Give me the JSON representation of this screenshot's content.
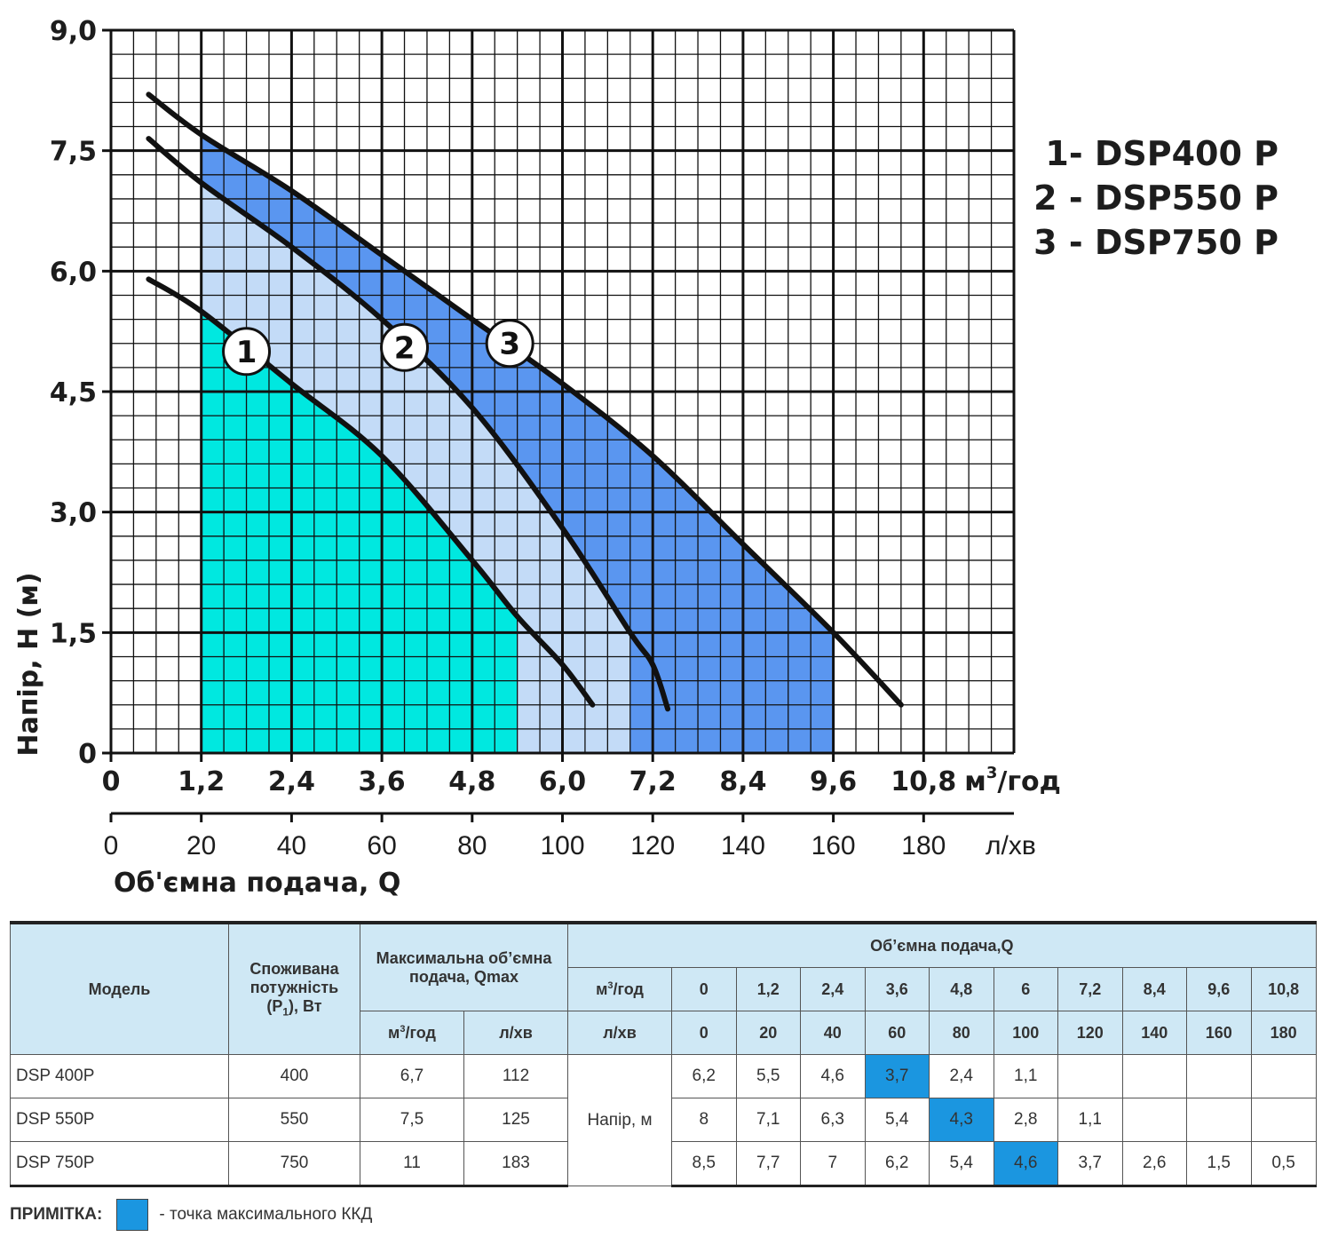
{
  "chart_data": {
    "type": "line",
    "ylabel": "Напір, H (м)",
    "xlabel": "Об'ємна подача, Q",
    "x_unit": "м³/год",
    "x2_unit": "л/хв",
    "xlim": [
      0,
      12.0
    ],
    "ylim": [
      0,
      9.0
    ],
    "x_ticks": [
      "0",
      "1,2",
      "2,4",
      "3,6",
      "4,8",
      "6,0",
      "7,2",
      "8,4",
      "9,6",
      "10,8"
    ],
    "x_tick_values": [
      0,
      1.2,
      2.4,
      3.6,
      4.8,
      6.0,
      7.2,
      8.4,
      9.6,
      10.8
    ],
    "x2_ticks": [
      "0",
      "20",
      "40",
      "60",
      "80",
      "100",
      "120",
      "140",
      "160",
      "180"
    ],
    "y_ticks": [
      "0",
      "1,5",
      "3,0",
      "4,5",
      "6,0",
      "7,5",
      "9,0"
    ],
    "y_tick_values": [
      0,
      1.5,
      3.0,
      4.5,
      6.0,
      7.5,
      9.0
    ],
    "grid": true,
    "legend_position": "right",
    "legend": [
      "1- DSP400 P",
      "2 - DSP550 P",
      "3 - DSP750 P"
    ],
    "series": [
      {
        "name": "DSP400 P",
        "label": "1",
        "color": "#00e8e0",
        "x": [
          0.5,
          1.2,
          2.4,
          3.6,
          4.8,
          5.4,
          6.0,
          6.4
        ],
        "y": [
          5.9,
          5.5,
          4.6,
          3.7,
          2.4,
          1.7,
          1.1,
          0.6
        ],
        "band": [
          1.2,
          5.4
        ],
        "label_at": [
          1.8,
          5.0
        ]
      },
      {
        "name": "DSP550 P",
        "label": "2",
        "color": "#c3dbf7",
        "x": [
          0.5,
          1.2,
          2.4,
          3.6,
          4.8,
          6.0,
          6.9,
          7.2,
          7.4
        ],
        "y": [
          7.65,
          7.1,
          6.3,
          5.4,
          4.3,
          2.8,
          1.5,
          1.1,
          0.55
        ],
        "band": [
          1.2,
          6.9
        ],
        "label_at": [
          3.9,
          5.05
        ]
      },
      {
        "name": "DSP750 P",
        "label": "3",
        "color": "#5a96f0",
        "x": [
          0.5,
          1.2,
          2.4,
          3.6,
          4.8,
          6.0,
          7.2,
          8.4,
          9.6,
          10.5
        ],
        "y": [
          8.2,
          7.7,
          7.0,
          6.2,
          5.4,
          4.6,
          3.7,
          2.6,
          1.5,
          0.6
        ],
        "band": [
          1.2,
          9.6
        ],
        "label_at": [
          5.3,
          5.1
        ]
      }
    ]
  },
  "table": {
    "header": {
      "model": "Модель",
      "power": [
        "Споживана",
        "потужність",
        "(P",
        "1",
        "), Вт"
      ],
      "qmax": "Максимальна об’ємна подача, Qmax",
      "qmax_m3": [
        "м",
        "3",
        "/год"
      ],
      "qmax_lmin": "л/хв",
      "flow": "Об’ємна подача,Q",
      "flow_m3_label": [
        "м",
        "3",
        "/год"
      ],
      "flow_lmin_label": "л/хв",
      "flow_m3": [
        "0",
        "1,2",
        "2,4",
        "3,6",
        "4,8",
        "6",
        "7,2",
        "8,4",
        "9,6",
        "10,8"
      ],
      "flow_lmin": [
        "0",
        "20",
        "40",
        "60",
        "80",
        "100",
        "120",
        "140",
        "160",
        "180"
      ]
    },
    "head_label": "Напір, м",
    "highlight_color": "#1b96e0",
    "rows": [
      {
        "model": "DSP 400P",
        "power": "400",
        "qmax_m3": "6,7",
        "qmax_lmin": "112",
        "heads": [
          "6,2",
          "5,5",
          "4,6",
          "3,7",
          "2,4",
          "1,1",
          "",
          "",
          "",
          ""
        ],
        "highlight": 3
      },
      {
        "model": "DSP 550P",
        "power": "550",
        "qmax_m3": "7,5",
        "qmax_lmin": "125",
        "heads": [
          "8",
          "7,1",
          "6,3",
          "5,4",
          "4,3",
          "2,8",
          "1,1",
          "",
          "",
          ""
        ],
        "highlight": 4
      },
      {
        "model": "DSP 750P",
        "power": "750",
        "qmax_m3": "11",
        "qmax_lmin": "183",
        "heads": [
          "8,5",
          "7,7",
          "7",
          "6,2",
          "5,4",
          "4,6",
          "3,7",
          "2,6",
          "1,5",
          "0,5"
        ],
        "highlight": 5
      }
    ]
  },
  "note": {
    "label": "ПРИМІТКА:",
    "text": "- точка максимального ККД"
  }
}
